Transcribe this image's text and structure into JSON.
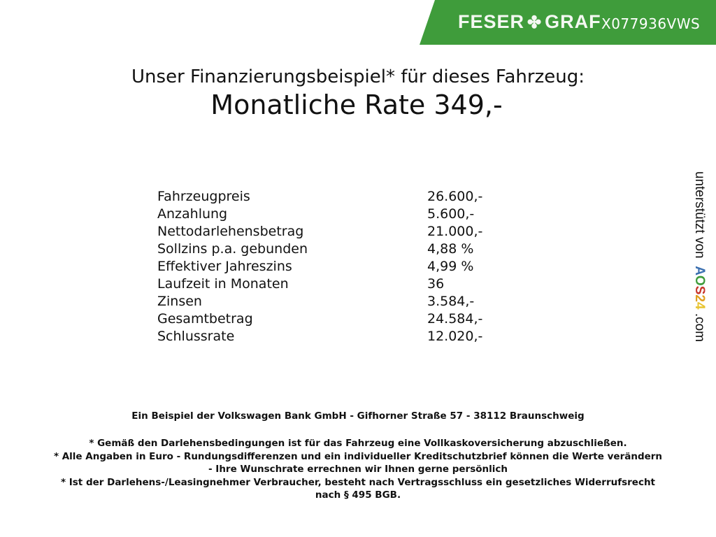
{
  "header": {
    "brand": "FESER",
    "brand2": "GRAF",
    "clover_icon": "clover-icon",
    "code": "X077936VWS",
    "color": "#3f9c3b"
  },
  "title": {
    "line1": "Unser Finanzierungsbeispiel* für dieses Fahrzeug:",
    "line2": "Monatliche Rate 349,-"
  },
  "rows": [
    {
      "label": "Fahrzeugpreis",
      "value": "26.600,-"
    },
    {
      "label": "Anzahlung",
      "value": "5.600,-"
    },
    {
      "label": "Nettodarlehensbetrag",
      "value": "21.000,-"
    },
    {
      "label": "Sollzins p.a. gebunden",
      "value": "4,88 %"
    },
    {
      "label": "Effektiver Jahreszins",
      "value": "4,99 %"
    },
    {
      "label": "Laufzeit in Monaten",
      "value": "36"
    },
    {
      "label": "Zinsen",
      "value": "3.584,-"
    },
    {
      "label": "Gesamtbetrag",
      "value": "24.584,-"
    },
    {
      "label": "Schlussrate",
      "value": "12.020,-"
    }
  ],
  "side": {
    "text": "unterstützt von",
    "a": "A",
    "o": "O",
    "s": "S",
    "n2": "2",
    "n4": "4",
    "com": ".com"
  },
  "footer": {
    "bank": "Ein Beispiel der Volkswagen Bank GmbH - Gifhorner Straße 57 - 38112 Braunschweig",
    "note1": "* Gemäß den Darlehensbedingungen ist für das Fahrzeug eine Vollkaskoversicherung abzuschließen.",
    "note2a": "* Alle Angaben in Euro - Rundungsdifferenzen und ein individueller Kreditschutzbrief können die Werte verändern",
    "note2b": "- Ihre Wunschrate errechnen wir Ihnen gerne persönlich",
    "note3a": "* Ist der Darlehens-/Leasingnehmer Verbraucher, besteht nach Vertragsschluss ein gesetzliches Widerrufsrecht",
    "note3b": "nach § 495 BGB."
  }
}
